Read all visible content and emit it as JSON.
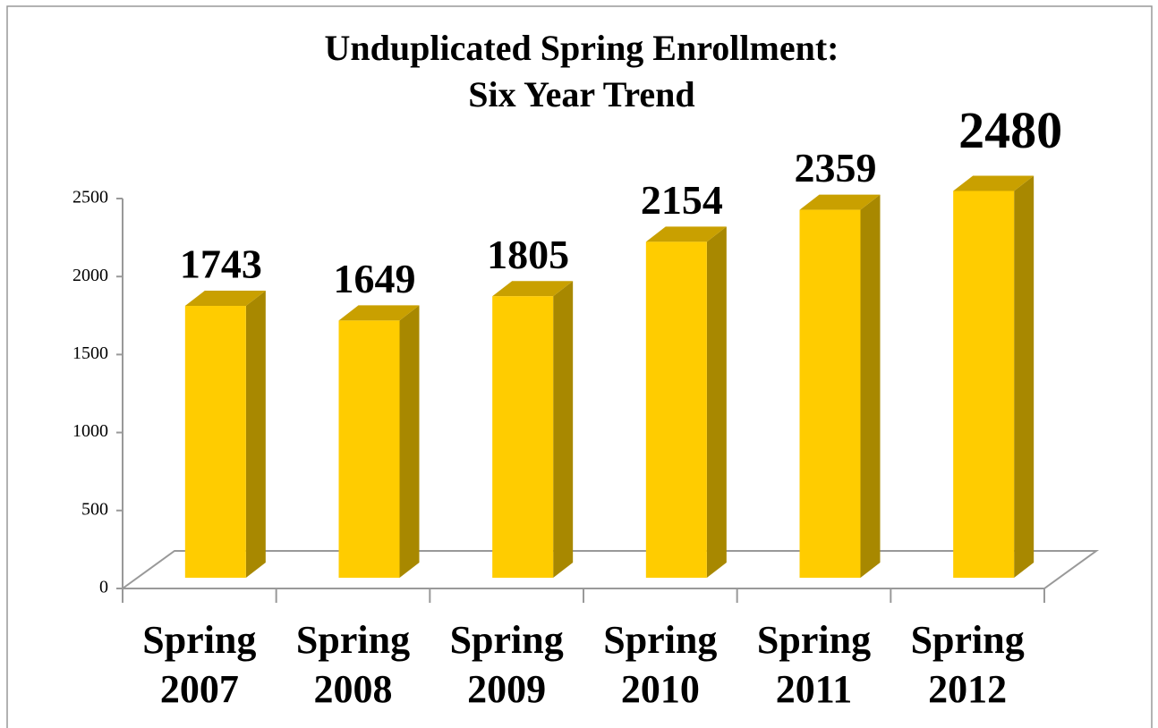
{
  "chart_data": {
    "type": "bar3d",
    "title_lines": [
      "Unduplicated Spring Enrollment:",
      "Six Year Trend"
    ],
    "categories": [
      "Spring 2007",
      "Spring 2008",
      "Spring 2009",
      "Spring 2010",
      "Spring 2011",
      "Spring 2012"
    ],
    "values": [
      1743,
      1649,
      1805,
      2154,
      2359,
      2480
    ],
    "color": "#ffcc00",
    "ylim": [
      0,
      2500
    ],
    "yticks": [
      0,
      500,
      1000,
      1500,
      2000,
      2500
    ]
  }
}
